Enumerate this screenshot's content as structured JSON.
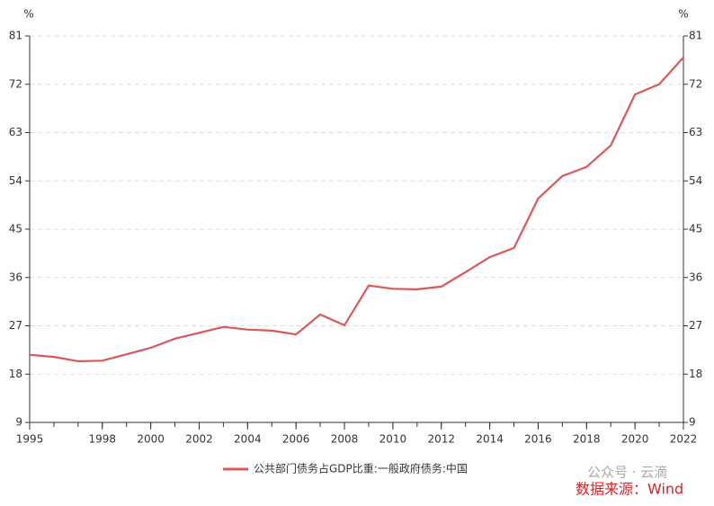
{
  "chart_data": {
    "type": "line",
    "ylabel": "%",
    "y2label": "%",
    "x": [
      1995,
      1996,
      1997,
      1998,
      1999,
      2000,
      2001,
      2002,
      2003,
      2004,
      2005,
      2006,
      2007,
      2008,
      2009,
      2010,
      2011,
      2012,
      2013,
      2014,
      2015,
      2016,
      2017,
      2018,
      2019,
      2020,
      2021,
      2022
    ],
    "series": [
      {
        "name": "公共部门债务占GDP比重:一般政府债务:中国",
        "color": "#d9585a",
        "values": [
          21.6,
          21.2,
          20.4,
          20.5,
          21.7,
          22.9,
          24.6,
          25.7,
          26.8,
          26.3,
          26.1,
          25.4,
          29.1,
          27.1,
          34.5,
          33.9,
          33.8,
          34.3,
          37.0,
          39.8,
          41.5,
          50.7,
          54.9,
          56.6,
          60.6,
          70.1,
          72.0,
          77.0
        ]
      }
    ],
    "xlim": [
      1995,
      2022
    ],
    "xticks": [
      1995,
      1998,
      2000,
      2002,
      2004,
      2006,
      2008,
      2010,
      2012,
      2014,
      2016,
      2018,
      2020,
      2022
    ],
    "ylim": [
      9,
      81
    ],
    "yticks": [
      9,
      18,
      27,
      36,
      45,
      54,
      63,
      72,
      81
    ],
    "y2lim": [
      9,
      81
    ],
    "y2ticks": [
      9,
      18,
      27,
      36,
      45,
      54,
      63,
      72,
      81
    ],
    "grid": true,
    "watermark": "公众号 · 云滴",
    "source": "数据来源：Wind"
  }
}
